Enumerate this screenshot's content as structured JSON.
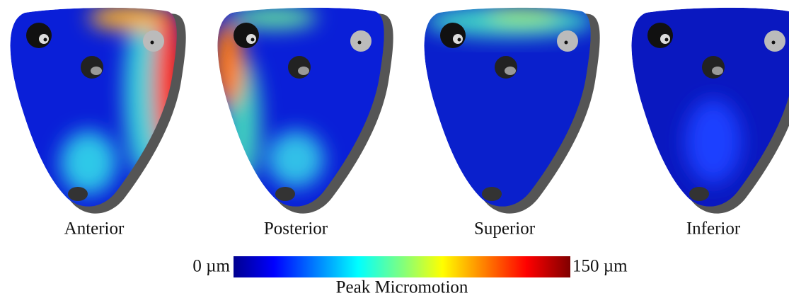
{
  "panels": [
    {
      "label": "Anterior"
    },
    {
      "label": "Posterior"
    },
    {
      "label": "Superior"
    },
    {
      "label": "Inferior"
    }
  ],
  "colorbar": {
    "min_label": "0 µm",
    "max_label": "150 µm",
    "title": "Peak Micromotion"
  }
}
